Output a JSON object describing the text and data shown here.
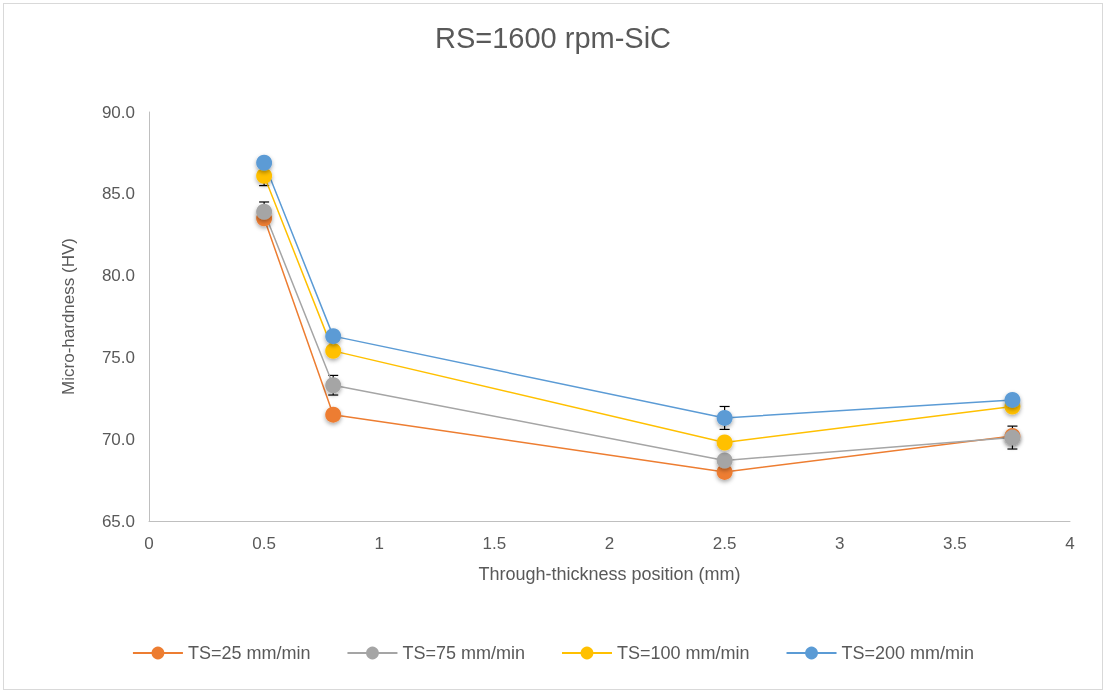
{
  "chart_data": {
    "type": "line",
    "title": "RS=1600 rpm-SiC",
    "xlabel": "Through-thickness position (mm)",
    "ylabel": "Micro-hardness (HV)",
    "x": [
      0.5,
      0.8,
      2.5,
      3.75
    ],
    "series": [
      {
        "name": "TS=25 mm/min",
        "color": "#ed7d31",
        "values": [
          83.5,
          71.5,
          68.0,
          70.2
        ]
      },
      {
        "name": "TS=75 mm/min",
        "color": "#a5a5a5",
        "values": [
          83.9,
          73.3,
          68.7,
          70.1
        ],
        "errors": [
          0.6,
          0.6,
          0.3,
          0.7
        ]
      },
      {
        "name": "TS=100 mm/min",
        "color": "#ffc000",
        "values": [
          86.1,
          75.4,
          69.8,
          72.0
        ],
        "errors": [
          0.6,
          null,
          null,
          null
        ]
      },
      {
        "name": "TS=200 mm/min",
        "color": "#5b9bd5",
        "values": [
          86.9,
          76.3,
          71.3,
          72.4
        ],
        "errors": [
          null,
          null,
          0.7,
          null
        ]
      }
    ],
    "xlim": [
      0,
      4
    ],
    "xticks": [
      0,
      0.5,
      1,
      1.5,
      2,
      2.5,
      3,
      3.5,
      4
    ],
    "ylim": [
      65,
      90
    ],
    "yticks": [
      {
        "value": 65,
        "label": "65.0"
      },
      {
        "value": 70,
        "label": "70.0"
      },
      {
        "value": 75,
        "label": "75.0"
      },
      {
        "value": 80,
        "label": "80.0"
      },
      {
        "value": 85,
        "label": "85.0"
      },
      {
        "value": 90,
        "label": "90.0"
      }
    ],
    "grid": false,
    "legend": "bottom",
    "marker": "circle",
    "line_style": "solid"
  }
}
